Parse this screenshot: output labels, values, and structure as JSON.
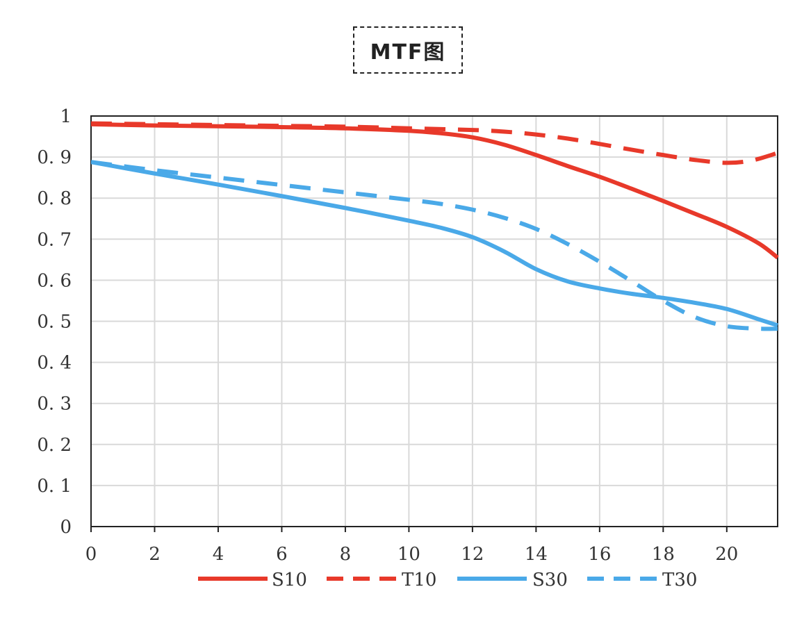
{
  "chart_data": {
    "type": "line",
    "title": "MTF图",
    "xlabel": "",
    "ylabel": "",
    "xlim": [
      0,
      21.6
    ],
    "ylim": [
      0,
      1
    ],
    "x_ticks": [
      0,
      2,
      4,
      6,
      8,
      10,
      12,
      14,
      16,
      18,
      20
    ],
    "y_ticks": [
      0,
      0.1,
      0.2,
      0.3,
      0.4,
      0.5,
      0.6,
      0.7,
      0.8,
      0.9,
      1
    ],
    "y_tick_labels": [
      "0",
      "0. 1",
      "0. 2",
      "0. 3",
      "0. 4",
      "0. 5",
      "0. 6",
      "0. 7",
      "0. 8",
      "0. 9",
      "1"
    ],
    "grid": true,
    "legend_position": "bottom",
    "series": [
      {
        "name": "S10",
        "color": "#e8392a",
        "style": "solid",
        "x": [
          0,
          2,
          4,
          6,
          8,
          10,
          11,
          12,
          13,
          14,
          15,
          16,
          17,
          18,
          19,
          20,
          21,
          21.6
        ],
        "y": [
          0.98,
          0.977,
          0.975,
          0.973,
          0.97,
          0.964,
          0.958,
          0.948,
          0.93,
          0.905,
          0.878,
          0.852,
          0.823,
          0.793,
          0.762,
          0.73,
          0.69,
          0.655
        ]
      },
      {
        "name": "T10",
        "color": "#e8392a",
        "style": "dashed",
        "x": [
          0,
          2,
          4,
          6,
          8,
          10,
          12,
          13,
          14,
          15,
          16,
          17,
          18,
          19,
          20,
          20.8,
          21.6
        ],
        "y": [
          0.982,
          0.98,
          0.978,
          0.976,
          0.974,
          0.97,
          0.966,
          0.962,
          0.955,
          0.945,
          0.932,
          0.918,
          0.905,
          0.893,
          0.886,
          0.892,
          0.91
        ]
      },
      {
        "name": "S30",
        "color": "#4aa9e8",
        "style": "solid",
        "x": [
          0,
          2,
          4,
          6,
          8,
          10,
          11,
          12,
          13,
          14,
          15,
          16,
          17,
          18,
          19,
          20,
          21,
          21.6
        ],
        "y": [
          0.888,
          0.86,
          0.833,
          0.805,
          0.776,
          0.745,
          0.728,
          0.705,
          0.67,
          0.627,
          0.597,
          0.58,
          0.567,
          0.557,
          0.545,
          0.53,
          0.505,
          0.49
        ]
      },
      {
        "name": "T30",
        "color": "#4aa9e8",
        "style": "dashed",
        "x": [
          0,
          2,
          4,
          6,
          8,
          10,
          11,
          12,
          13,
          14,
          15,
          16,
          17,
          18,
          19,
          20,
          21,
          21.6
        ],
        "y": [
          0.888,
          0.868,
          0.85,
          0.832,
          0.814,
          0.796,
          0.786,
          0.772,
          0.752,
          0.725,
          0.688,
          0.645,
          0.598,
          0.55,
          0.51,
          0.488,
          0.482,
          0.482
        ]
      }
    ]
  }
}
